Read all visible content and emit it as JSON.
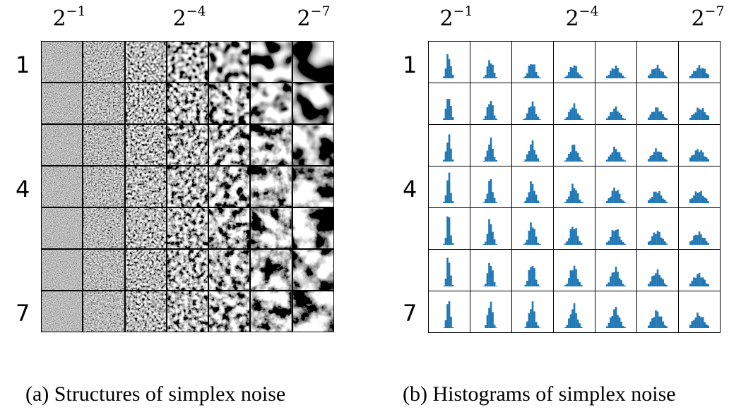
{
  "panel_a": {
    "caption": "(a) Structures of simplex noise",
    "column_labels": [
      {
        "base": "2",
        "exp": "−1"
      },
      {
        "base": "2",
        "exp": "−4"
      },
      {
        "base": "2",
        "exp": "−7"
      }
    ],
    "row_labels": [
      "1",
      "4",
      "7"
    ]
  },
  "panel_b": {
    "caption": "(b) Histograms of simplex noise",
    "column_labels": [
      {
        "base": "2",
        "exp": "−1"
      },
      {
        "base": "2",
        "exp": "−4"
      },
      {
        "base": "2",
        "exp": "−7"
      }
    ],
    "row_labels": [
      "1",
      "4",
      "7"
    ],
    "bar_color": "#1f77b4"
  }
}
